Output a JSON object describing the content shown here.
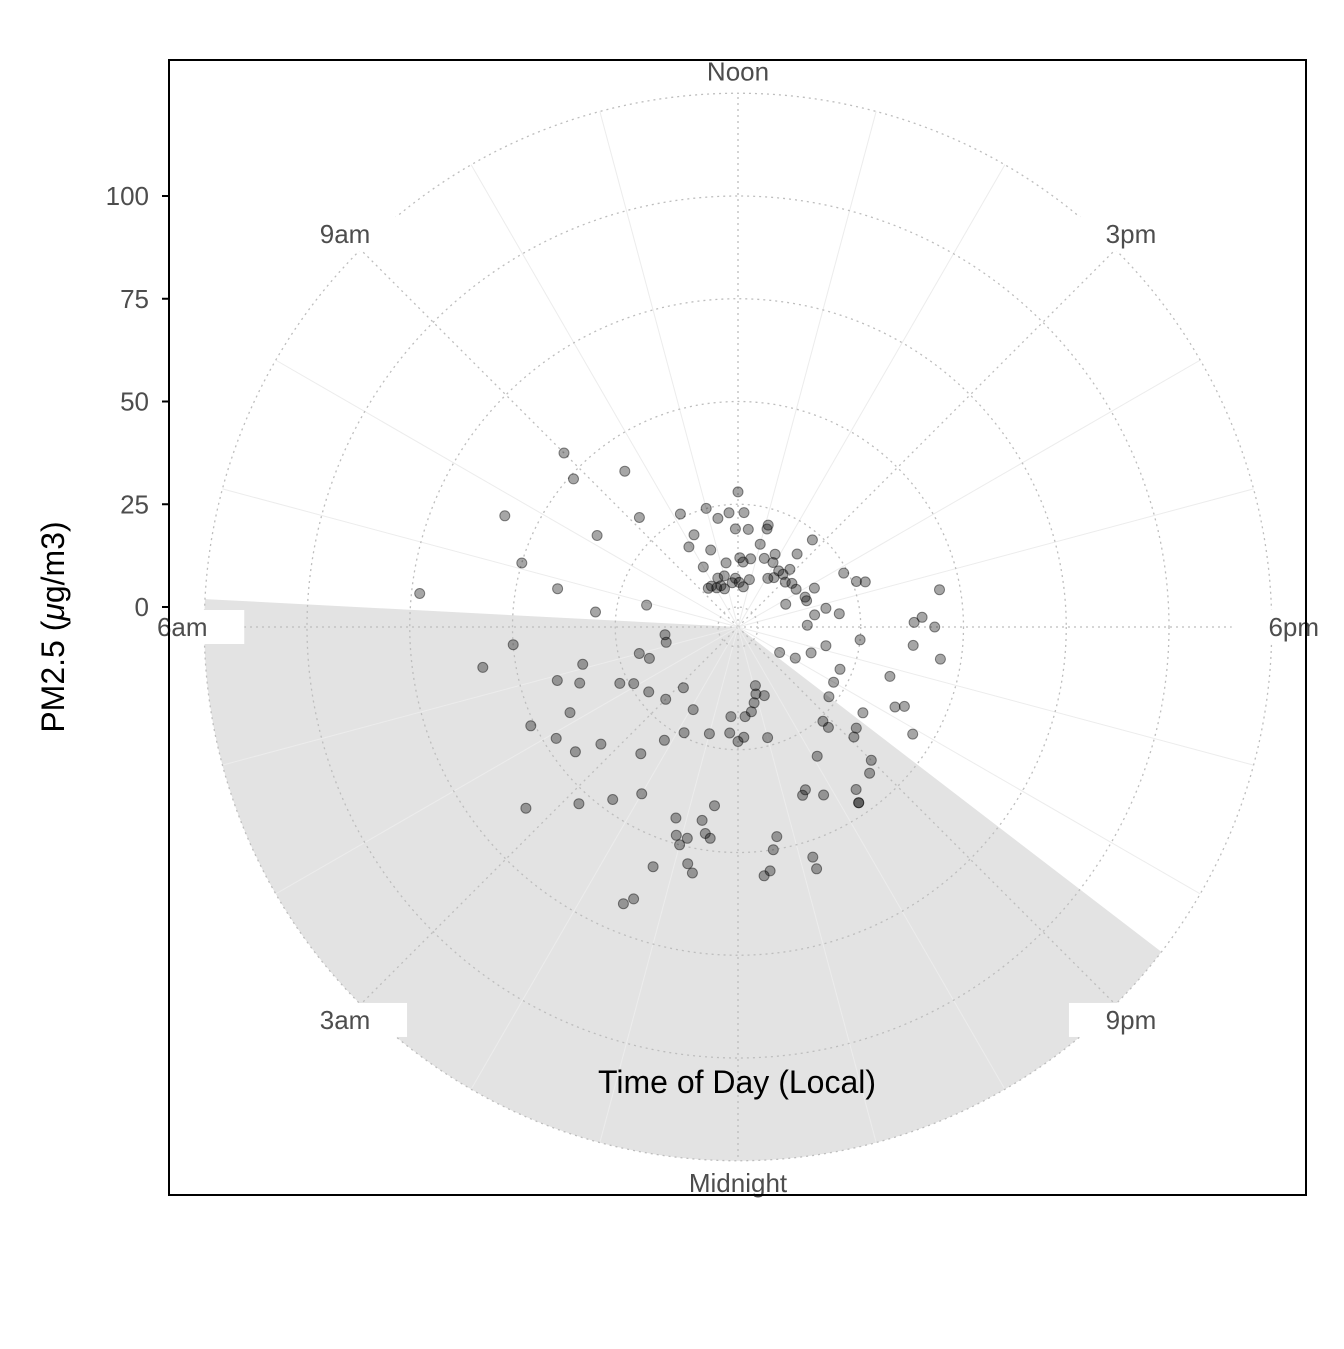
{
  "chart_data": {
    "type": "scatter",
    "coordinate_system": "polar",
    "xlabel": "Time of Day (Local)",
    "ylabel_main": "PM2.5 (",
    "ylabel_mu": "μ",
    "ylabel_rest": "g/m3)",
    "angular_axis": {
      "range_hours": [
        0,
        24
      ],
      "zero_at": "bottom",
      "direction": "clockwise",
      "tick_labels": [
        {
          "hour": 0,
          "label": "Midnight"
        },
        {
          "hour": 3,
          "label": "3am"
        },
        {
          "hour": 6,
          "label": "6am"
        },
        {
          "hour": 9,
          "label": "9am"
        },
        {
          "hour": 12,
          "label": "Noon"
        },
        {
          "hour": 15,
          "label": "3pm"
        },
        {
          "hour": 18,
          "label": "6pm"
        },
        {
          "hour": 21,
          "label": "9pm"
        }
      ]
    },
    "radial_axis": {
      "range": [
        0,
        125
      ],
      "ticks": [
        0,
        25,
        50,
        75,
        100
      ],
      "tick_labels": [
        "0",
        "25",
        "50",
        "75",
        "100"
      ]
    },
    "nighttime_shading": {
      "start_hour": 20.5,
      "end_hour": 6.2,
      "color": "#e3e3e3"
    },
    "point_color": "#000000",
    "point_opacity": 0.35,
    "grid": true,
    "points": [
      [
        12.0,
        28
      ],
      [
        12.2,
        23
      ],
      [
        11.9,
        19
      ],
      [
        12.4,
        19
      ],
      [
        11.7,
        23
      ],
      [
        11.3,
        22
      ],
      [
        11.0,
        25
      ],
      [
        10.7,
        15
      ],
      [
        10.3,
        20
      ],
      [
        10.2,
        26
      ],
      [
        9.9,
        18
      ],
      [
        9.6,
        42
      ],
      [
        9.2,
        31
      ],
      [
        9.0,
        55
      ],
      [
        8.8,
        49
      ],
      [
        8.2,
        36
      ],
      [
        7.7,
        58
      ],
      [
        7.1,
        50
      ],
      [
        6.9,
        18
      ],
      [
        6.8,
        40
      ],
      [
        6.4,
        30
      ],
      [
        6.4,
        73
      ],
      [
        12.1,
        12
      ],
      [
        11.3,
        11
      ],
      [
        11.8,
        7
      ],
      [
        10.5,
        8
      ],
      [
        10.0,
        12
      ],
      [
        12.3,
        11
      ],
      [
        12.7,
        12
      ],
      [
        13.0,
        16
      ],
      [
        13.1,
        20
      ],
      [
        13.1,
        21
      ],
      [
        13.4,
        13
      ],
      [
        13.9,
        13
      ],
      [
        14.6,
        18
      ],
      [
        14.1,
        9
      ],
      [
        14.4,
        10
      ],
      [
        12.9,
        7
      ],
      [
        12.5,
        5
      ],
      [
        12.1,
        6
      ],
      [
        11.0,
        8
      ],
      [
        10.7,
        5
      ],
      [
        10.5,
        6
      ],
      [
        10.1,
        6
      ],
      [
        9.8,
        7
      ],
      [
        9.5,
        7
      ],
      [
        11.5,
        6
      ],
      [
        16.2,
        24
      ],
      [
        16.6,
        26
      ],
      [
        16.7,
        28
      ],
      [
        17.3,
        45
      ],
      [
        17.9,
        38
      ],
      [
        17.8,
        40
      ],
      [
        18.0,
        43
      ],
      [
        18.4,
        38
      ],
      [
        18.6,
        45
      ],
      [
        19.2,
        34
      ],
      [
        19.8,
        38
      ],
      [
        19.7,
        40
      ],
      [
        20.1,
        45
      ],
      [
        14.7,
        23
      ],
      [
        14.8,
        14
      ],
      [
        15.8,
        12
      ],
      [
        16.3,
        8
      ],
      [
        16.6,
        13
      ],
      [
        17.2,
        17
      ],
      [
        17.5,
        20
      ],
      [
        18.4,
        25
      ],
      [
        17.4,
        14
      ],
      [
        17.9,
        12
      ],
      [
        15.1,
        11
      ],
      [
        16.4,
        13
      ],
      [
        16.2,
        16
      ],
      [
        15.4,
        12
      ],
      [
        14.7,
        12
      ],
      [
        14.4,
        12
      ],
      [
        13.8,
        15
      ],
      [
        18.8,
        17
      ],
      [
        19.3,
        14
      ],
      [
        19.9,
        11
      ],
      [
        20.1,
        7
      ],
      [
        19.5,
        22
      ],
      [
        20.0,
        22
      ],
      [
        20.3,
        32
      ],
      [
        20.7,
        33
      ],
      [
        20.9,
        34
      ],
      [
        21.0,
        41
      ],
      [
        21.2,
        43
      ],
      [
        21.6,
        44
      ],
      [
        21.7,
        47
      ],
      [
        21.7,
        47
      ],
      [
        21.2,
        28
      ],
      [
        21.2,
        26
      ],
      [
        20.5,
        23
      ],
      [
        21.9,
        32
      ],
      [
        22.2,
        41
      ],
      [
        22.5,
        38
      ],
      [
        22.6,
        39
      ],
      [
        22.8,
        57
      ],
      [
        22.8,
        54
      ],
      [
        23.0,
        23
      ],
      [
        23.3,
        47
      ],
      [
        23.4,
        50
      ],
      [
        23.5,
        55
      ],
      [
        23.6,
        56
      ],
      [
        23.8,
        22
      ],
      [
        0.0,
        23
      ],
      [
        0.3,
        21
      ],
      [
        0.5,
        47
      ],
      [
        0.9,
        48
      ],
      [
        1.1,
        48
      ],
      [
        1.0,
        50
      ],
      [
        0.8,
        54
      ],
      [
        0.7,
        56
      ],
      [
        1.3,
        57
      ],
      [
        1.4,
        66
      ],
      [
        1.5,
        68
      ],
      [
        0.7,
        43
      ],
      [
        0.6,
        46
      ],
      [
        0.5,
        39
      ],
      [
        1.2,
        44
      ],
      [
        2.0,
        42
      ],
      [
        2.2,
        28
      ],
      [
        2.4,
        47
      ],
      [
        1.9,
        18
      ],
      [
        2.5,
        34
      ],
      [
        3.3,
        39
      ],
      [
        3.5,
        45
      ],
      [
        2.8,
        53
      ],
      [
        3.3,
        63
      ],
      [
        3.9,
        47
      ],
      [
        4.2,
        41
      ],
      [
        4.7,
        36
      ],
      [
        5.1,
        34
      ],
      [
        4.9,
        41
      ],
      [
        4.3,
        51
      ],
      [
        5.4,
        58
      ],
      [
        5.7,
        50
      ],
      [
        2.8,
        15
      ],
      [
        3.0,
        20
      ],
      [
        3.6,
        22
      ],
      [
        4.1,
        24
      ],
      [
        4.3,
        27
      ],
      [
        4.7,
        18
      ],
      [
        5.0,
        20
      ],
      [
        5.2,
        13
      ],
      [
        5.6,
        13
      ],
      [
        1.8,
        24
      ],
      [
        1.0,
        22
      ],
      [
        0.3,
        17
      ],
      [
        23.7,
        17
      ],
      [
        23.4,
        16
      ],
      [
        23.2,
        14
      ],
      [
        23.0,
        12
      ],
      [
        22.6,
        13
      ],
      [
        22.9,
        10
      ]
    ]
  }
}
